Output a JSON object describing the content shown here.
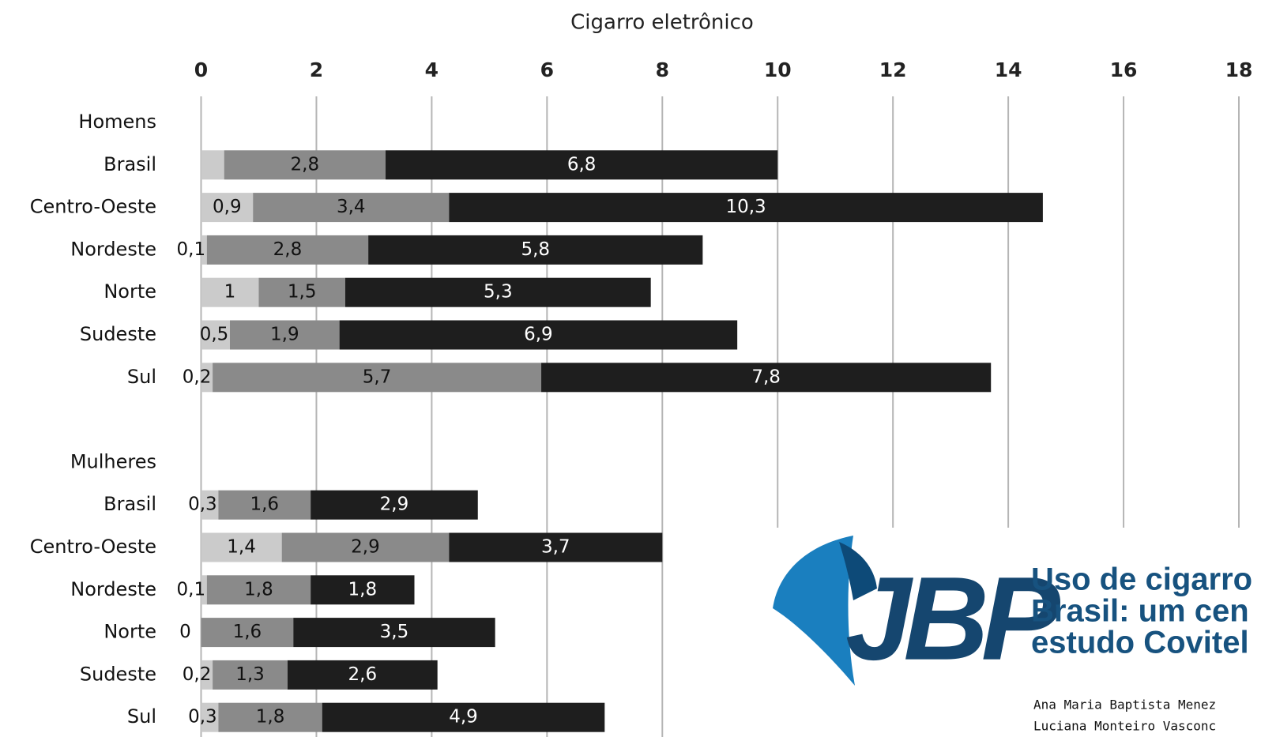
{
  "chart_data": {
    "type": "stacked-barh",
    "title": "Cigarro eletrônico",
    "categories": [
      "Homens",
      "Brasil",
      "Centro-Oeste",
      "Nordeste",
      "Norte",
      "Sudeste",
      "Sul",
      null,
      "Mulheres",
      "Brasil",
      "Centro-Oeste",
      "Nordeste",
      "Norte",
      "Sudeste",
      "Sul"
    ],
    "series": [
      {
        "color": "#cbcbcb",
        "values": [
          null,
          0.4,
          0.9,
          0.1,
          1,
          0.5,
          0.2,
          null,
          null,
          0.3,
          1.4,
          0.1,
          0,
          0.2,
          0.3
        ],
        "value_labels": [
          null,
          null,
          "0,9",
          "0,1",
          "1",
          "0,5",
          "0,2",
          null,
          null,
          "0,3",
          "1,4",
          "0,1",
          "0",
          "0,2",
          "0,3"
        ]
      },
      {
        "color": "#8a8a8a",
        "values": [
          null,
          2.8,
          3.4,
          2.8,
          1.5,
          1.9,
          5.7,
          null,
          null,
          1.6,
          2.9,
          1.8,
          1.6,
          1.3,
          1.8
        ],
        "value_labels": [
          null,
          "2,8",
          "3,4",
          "2,8",
          "1,5",
          "1,9",
          "5,7",
          null,
          null,
          "1,6",
          "2,9",
          "1,8",
          "1,6",
          "1,3",
          "1,8"
        ]
      },
      {
        "color": "#1e1e1e",
        "values": [
          null,
          6.8,
          10.3,
          5.8,
          5.3,
          6.9,
          7.8,
          null,
          null,
          2.9,
          3.7,
          1.8,
          3.5,
          2.6,
          4.9
        ],
        "value_labels": [
          null,
          "6,8",
          "10,3",
          "5,8",
          "5,3",
          "6,9",
          "7,8",
          null,
          null,
          "2,9",
          "3,7",
          "1,8",
          "3,5",
          "2,6",
          "4,9"
        ]
      }
    ],
    "xlim": [
      0,
      18
    ],
    "xticks": [
      0,
      2,
      4,
      6,
      8,
      10,
      12,
      14,
      16,
      18
    ],
    "grid": true
  },
  "banner": {
    "logo": "JBP",
    "title_lines": [
      "Uso de cigarro",
      "Brasil: um cen",
      "estudo Covitel"
    ],
    "authors": [
      "Ana Maria Baptista Menez",
      "Luciana Monteiro Vasconc"
    ]
  }
}
